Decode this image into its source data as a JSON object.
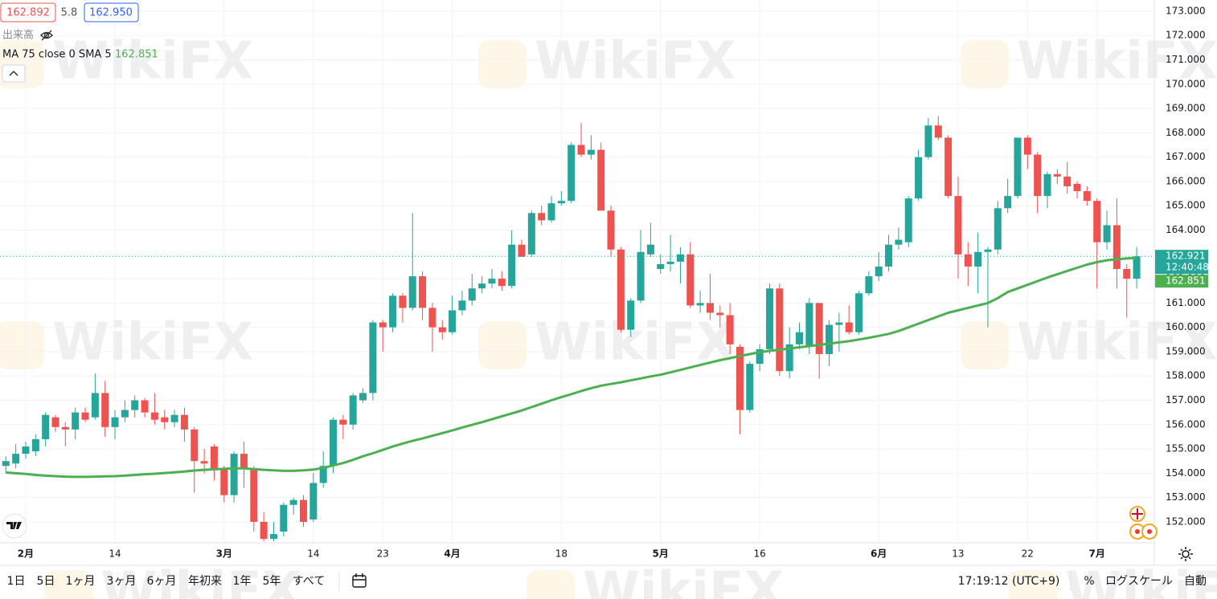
{
  "chart_data": {
    "type": "candlestick",
    "watermark": "WikiFX",
    "quote": {
      "bid": "162.892",
      "spread": "5.8",
      "ask": "162.950"
    },
    "volume_label": "出来高",
    "ma_label": "MA 75 close 0 SMA 5",
    "ma_last": "162.851",
    "last_price": 162.921,
    "last_price_label": "162.921",
    "countdown": "12:40:48",
    "up_color": "#26a69a",
    "down_color": "#ef5350",
    "ylim": [
      151.14,
      173.46
    ],
    "yticks": [
      {
        "value": 152,
        "label": "152.000"
      },
      {
        "value": 153,
        "label": "153.000"
      },
      {
        "value": 154,
        "label": "154.000"
      },
      {
        "value": 155,
        "label": "155.000"
      },
      {
        "value": 156,
        "label": "156.000"
      },
      {
        "value": 157,
        "label": "157.000"
      },
      {
        "value": 158,
        "label": "158.000"
      },
      {
        "value": 159,
        "label": "159.000"
      },
      {
        "value": 160,
        "label": "160.000"
      },
      {
        "value": 161,
        "label": "161.000"
      },
      {
        "value": 162,
        "label": "162.000"
      },
      {
        "value": 163,
        "label": "163.000"
      },
      {
        "value": 164,
        "label": "164.000"
      },
      {
        "value": 165,
        "label": "165.000"
      },
      {
        "value": 166,
        "label": "166.000"
      },
      {
        "value": 167,
        "label": "167.000"
      },
      {
        "value": 168,
        "label": "168.000"
      },
      {
        "value": 169,
        "label": "169.000"
      },
      {
        "value": 170,
        "label": "170.000"
      },
      {
        "value": 171,
        "label": "171.000"
      },
      {
        "value": 172,
        "label": "172.000"
      },
      {
        "value": 173,
        "label": "173.000"
      }
    ],
    "grid": true,
    "categories": [
      null,
      null,
      "2月",
      null,
      null,
      null,
      null,
      null,
      null,
      null,
      null,
      "14",
      null,
      null,
      null,
      null,
      null,
      null,
      null,
      null,
      null,
      null,
      "3月",
      null,
      null,
      null,
      null,
      null,
      null,
      null,
      null,
      "14",
      null,
      null,
      null,
      null,
      null,
      null,
      "23",
      null,
      null,
      null,
      null,
      null,
      null,
      "4月",
      null,
      null,
      null,
      null,
      null,
      null,
      null,
      null,
      null,
      null,
      "18",
      null,
      null,
      null,
      null,
      null,
      null,
      null,
      null,
      null,
      "5月",
      null,
      null,
      null,
      null,
      null,
      null,
      null,
      null,
      null,
      "16",
      null,
      null,
      null,
      null,
      null,
      null,
      null,
      null,
      null,
      null,
      null,
      "6月",
      null,
      null,
      null,
      null,
      null,
      null,
      null,
      "13",
      null,
      null,
      null,
      null,
      null,
      null,
      "22",
      null,
      null,
      null,
      null,
      null,
      null,
      "7月",
      null,
      null,
      null,
      null
    ],
    "ohlc": [
      [
        154.3,
        154.7,
        154.0,
        154.5
      ],
      [
        154.4,
        155.2,
        154.2,
        154.8
      ],
      [
        154.8,
        155.3,
        154.6,
        155.1
      ],
      [
        154.9,
        155.6,
        154.7,
        155.4
      ],
      [
        155.4,
        156.5,
        155.1,
        156.4
      ],
      [
        156.3,
        156.4,
        155.7,
        155.9
      ],
      [
        155.9,
        156.1,
        155.1,
        155.8
      ],
      [
        155.8,
        156.7,
        155.4,
        156.5
      ],
      [
        156.5,
        156.7,
        156.1,
        156.2
      ],
      [
        156.3,
        158.1,
        156.2,
        157.3
      ],
      [
        157.3,
        157.8,
        155.5,
        155.9
      ],
      [
        155.9,
        156.6,
        155.4,
        156.3
      ],
      [
        156.3,
        157.0,
        156.1,
        156.6
      ],
      [
        156.6,
        157.2,
        156.3,
        157.0
      ],
      [
        157.0,
        157.1,
        156.3,
        156.5
      ],
      [
        156.5,
        157.3,
        156.0,
        156.2
      ],
      [
        156.3,
        156.6,
        155.8,
        156.1
      ],
      [
        156.1,
        156.6,
        155.9,
        156.4
      ],
      [
        156.4,
        156.7,
        155.3,
        155.8
      ],
      [
        155.8,
        155.9,
        153.2,
        154.5
      ],
      [
        154.5,
        155.0,
        154.0,
        154.4
      ],
      [
        155.1,
        155.2,
        153.7,
        154.2
      ],
      [
        154.2,
        154.3,
        152.8,
        153.1
      ],
      [
        153.1,
        154.9,
        152.8,
        154.8
      ],
      [
        154.8,
        155.3,
        153.4,
        154.2
      ],
      [
        154.2,
        154.3,
        151.6,
        152.0
      ],
      [
        152.0,
        152.4,
        151.2,
        151.3
      ],
      [
        151.3,
        152.0,
        151.2,
        151.5
      ],
      [
        151.6,
        152.8,
        151.4,
        152.7
      ],
      [
        152.7,
        153.0,
        152.3,
        152.9
      ],
      [
        152.9,
        153.1,
        151.8,
        152.0
      ],
      [
        152.1,
        154.0,
        152.0,
        153.6
      ],
      [
        153.6,
        154.9,
        153.4,
        154.3
      ],
      [
        154.3,
        156.3,
        154.0,
        156.2
      ],
      [
        156.2,
        156.4,
        155.4,
        156.0
      ],
      [
        156.0,
        157.3,
        155.8,
        157.2
      ],
      [
        157.0,
        157.5,
        156.9,
        157.3
      ],
      [
        157.3,
        160.3,
        157.0,
        160.2
      ],
      [
        160.2,
        160.3,
        159.0,
        160.0
      ],
      [
        160.0,
        161.4,
        159.8,
        161.3
      ],
      [
        161.3,
        161.4,
        160.2,
        160.8
      ],
      [
        160.8,
        164.7,
        160.7,
        162.1
      ],
      [
        162.1,
        162.3,
        160.3,
        160.8
      ],
      [
        160.8,
        161.0,
        159.0,
        160.0
      ],
      [
        160.0,
        160.3,
        159.5,
        159.8
      ],
      [
        159.8,
        161.3,
        159.7,
        160.7
      ],
      [
        160.7,
        161.5,
        160.5,
        161.1
      ],
      [
        161.1,
        162.2,
        160.9,
        161.6
      ],
      [
        161.6,
        162.1,
        161.4,
        161.8
      ],
      [
        161.8,
        162.4,
        161.6,
        162.0
      ],
      [
        162.0,
        162.3,
        161.5,
        161.7
      ],
      [
        161.7,
        164.0,
        161.6,
        163.4
      ],
      [
        163.4,
        163.6,
        162.9,
        162.9
      ],
      [
        163.0,
        164.8,
        162.9,
        164.7
      ],
      [
        164.7,
        165.0,
        164.2,
        164.4
      ],
      [
        164.4,
        165.4,
        164.3,
        165.1
      ],
      [
        165.1,
        165.6,
        165.0,
        165.2
      ],
      [
        165.2,
        167.6,
        165.1,
        167.5
      ],
      [
        167.5,
        168.4,
        167.0,
        167.1
      ],
      [
        167.1,
        167.9,
        166.9,
        167.3
      ],
      [
        167.3,
        167.6,
        164.8,
        164.8
      ],
      [
        164.8,
        165.0,
        162.9,
        163.2
      ],
      [
        163.2,
        163.3,
        159.8,
        159.9
      ],
      [
        159.9,
        161.2,
        159.6,
        161.1
      ],
      [
        161.1,
        164.0,
        161.0,
        163.1
      ],
      [
        163.0,
        164.3,
        162.9,
        163.4
      ],
      [
        162.4,
        163.0,
        162.2,
        162.6
      ],
      [
        162.6,
        163.8,
        162.3,
        162.7
      ],
      [
        162.7,
        163.3,
        161.8,
        163.0
      ],
      [
        163.0,
        163.5,
        160.8,
        160.9
      ],
      [
        160.9,
        161.5,
        160.6,
        161.0
      ],
      [
        161.0,
        162.2,
        160.3,
        160.6
      ],
      [
        160.6,
        160.9,
        160.0,
        160.5
      ],
      [
        160.5,
        161.0,
        158.9,
        159.3
      ],
      [
        159.2,
        159.3,
        155.6,
        156.6
      ],
      [
        156.6,
        158.6,
        156.5,
        158.5
      ],
      [
        158.5,
        159.3,
        158.2,
        159.1
      ],
      [
        159.1,
        161.8,
        158.9,
        161.6
      ],
      [
        161.6,
        161.8,
        158.0,
        158.2
      ],
      [
        158.2,
        160.0,
        157.9,
        159.3
      ],
      [
        159.3,
        160.2,
        159.1,
        159.8
      ],
      [
        159.2,
        161.2,
        158.9,
        161.0
      ],
      [
        161.0,
        161.0,
        157.9,
        158.9
      ],
      [
        158.9,
        160.3,
        158.4,
        160.1
      ],
      [
        160.1,
        160.6,
        159.0,
        160.2
      ],
      [
        160.2,
        160.9,
        159.7,
        159.8
      ],
      [
        159.8,
        161.5,
        159.7,
        161.4
      ],
      [
        161.4,
        162.3,
        161.3,
        162.1
      ],
      [
        162.1,
        163.1,
        161.9,
        162.5
      ],
      [
        162.5,
        163.8,
        162.3,
        163.4
      ],
      [
        163.4,
        164.1,
        163.2,
        163.6
      ],
      [
        163.5,
        165.4,
        163.3,
        165.3
      ],
      [
        165.3,
        167.3,
        165.2,
        167.0
      ],
      [
        167.0,
        168.6,
        166.9,
        168.3
      ],
      [
        168.3,
        168.7,
        167.7,
        167.8
      ],
      [
        167.8,
        167.9,
        165.3,
        165.4
      ],
      [
        165.4,
        166.2,
        162.0,
        163.0
      ],
      [
        163.0,
        163.5,
        161.7,
        162.5
      ],
      [
        162.5,
        163.9,
        161.4,
        163.1
      ],
      [
        163.1,
        163.3,
        160.0,
        163.2
      ],
      [
        163.2,
        165.2,
        163.0,
        164.9
      ],
      [
        164.9,
        166.1,
        164.7,
        165.4
      ],
      [
        165.4,
        167.8,
        165.3,
        167.8
      ],
      [
        167.8,
        167.9,
        166.5,
        167.1
      ],
      [
        167.1,
        167.2,
        164.7,
        165.4
      ],
      [
        165.4,
        166.4,
        164.9,
        166.3
      ],
      [
        166.3,
        166.5,
        165.9,
        166.2
      ],
      [
        166.2,
        166.8,
        165.5,
        165.8
      ],
      [
        165.9,
        166.0,
        165.3,
        165.6
      ],
      [
        165.6,
        165.8,
        165.0,
        165.2
      ],
      [
        165.2,
        165.3,
        161.6,
        163.5
      ],
      [
        163.5,
        164.8,
        163.2,
        164.2
      ],
      [
        164.2,
        165.3,
        161.6,
        162.4
      ],
      [
        162.4,
        162.6,
        160.4,
        162.0
      ],
      [
        162.0,
        163.3,
        161.6,
        162.921
      ]
    ],
    "ma": {
      "color": "#4caf50",
      "values": [
        154.03,
        154.0,
        153.97,
        153.93,
        153.9,
        153.88,
        153.86,
        153.85,
        153.85,
        153.86,
        153.87,
        153.88,
        153.9,
        153.93,
        153.96,
        153.98,
        154.01,
        154.04,
        154.07,
        154.11,
        154.14,
        154.16,
        154.18,
        154.2,
        154.2,
        154.17,
        154.14,
        154.12,
        154.1,
        154.1,
        154.12,
        154.15,
        154.22,
        154.32,
        154.42,
        154.55,
        154.7,
        154.82,
        154.96,
        155.1,
        155.22,
        155.33,
        155.43,
        155.54,
        155.65,
        155.76,
        155.88,
        155.99,
        156.1,
        156.22,
        156.34,
        156.46,
        156.58,
        156.72,
        156.86,
        157.0,
        157.13,
        157.25,
        157.38,
        157.5,
        157.6,
        157.67,
        157.74,
        157.82,
        157.9,
        157.98,
        158.05,
        158.15,
        158.25,
        158.35,
        158.45,
        158.55,
        158.65,
        158.73,
        158.82,
        158.9,
        158.98,
        159.03,
        159.08,
        159.13,
        159.18,
        159.23,
        159.28,
        159.33,
        159.38,
        159.43,
        159.5,
        159.57,
        159.65,
        159.73,
        159.85,
        160.0,
        160.15,
        160.3,
        160.45,
        160.6,
        160.7,
        160.8,
        160.9,
        161.0,
        161.2,
        161.45,
        161.6,
        161.75,
        161.9,
        162.05,
        162.18,
        162.32,
        162.45,
        162.58,
        162.68,
        162.76,
        162.8,
        162.83,
        162.85
      ]
    },
    "toolbar": {
      "ranges": [
        "1日",
        "5日",
        "1ヶ月",
        "3ヶ月",
        "6ヶ月",
        "年初来",
        "1年",
        "5年",
        "すべて"
      ],
      "clock": "17:19:12 (UTC+9)",
      "percent": "%",
      "log": "ログスケール",
      "auto": "自動"
    }
  }
}
